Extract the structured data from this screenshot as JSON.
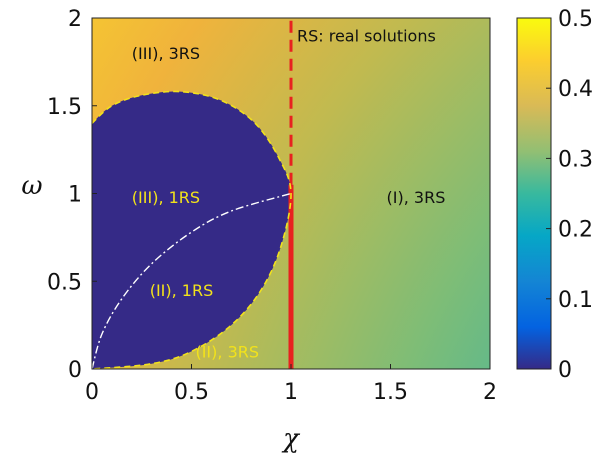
{
  "chart_data": {
    "type": "heatmap",
    "title": "",
    "xlabel": "χ",
    "ylabel": "ω",
    "xlim": [
      0,
      2
    ],
    "ylim": [
      0,
      2
    ],
    "x_ticks": [
      "0",
      "0.5",
      "1",
      "1.5",
      "2"
    ],
    "y_ticks": [
      "0",
      "0.5",
      "1",
      "1.5",
      "2"
    ],
    "colorbar": {
      "range": [
        0,
        0.5
      ],
      "ticks": [
        "0",
        "0.1",
        "0.2",
        "0.3",
        "0.4",
        "0.5"
      ],
      "colormap": "parula"
    },
    "annotations": [
      {
        "text": "RS: real solutions",
        "x": 1.03,
        "y": 1.9,
        "color": "#111111"
      },
      {
        "text": "(III), 3RS",
        "x": 0.2,
        "y": 1.8,
        "color": "#111111"
      },
      {
        "text": "(III), 1RS",
        "x": 0.2,
        "y": 0.98,
        "color": "#f2e21b"
      },
      {
        "text": "(II), 1RS",
        "x": 0.29,
        "y": 0.45,
        "color": "#f2e21b"
      },
      {
        "text": "(II), 3RS",
        "x": 0.52,
        "y": 0.1,
        "color": "#f2e21b"
      },
      {
        "text": "(I), 3RS",
        "x": 1.48,
        "y": 0.98,
        "color": "#111111"
      }
    ],
    "boundaries": [
      {
        "name": "1RS region boundary",
        "style": "yellow dashed",
        "points": [
          [
            0,
            1.4
          ],
          [
            0.1,
            1.5
          ],
          [
            0.25,
            1.56
          ],
          [
            0.45,
            1.58
          ],
          [
            0.65,
            1.53
          ],
          [
            0.82,
            1.4
          ],
          [
            0.94,
            1.2
          ],
          [
            1.0,
            1.0
          ],
          [
            0.95,
            0.7
          ],
          [
            0.85,
            0.45
          ],
          [
            0.7,
            0.25
          ],
          [
            0.5,
            0.1
          ],
          [
            0.3,
            0.03
          ],
          [
            0,
            0
          ]
        ]
      },
      {
        "name": "inner boundary",
        "style": "white dash-dot",
        "points": [
          [
            0,
            0
          ],
          [
            0.05,
            0.2
          ],
          [
            0.15,
            0.4
          ],
          [
            0.3,
            0.6
          ],
          [
            0.5,
            0.78
          ],
          [
            0.7,
            0.9
          ],
          [
            1.0,
            1.0
          ]
        ]
      },
      {
        "name": "dashed vertical",
        "style": "red dashed",
        "points": [
          [
            1,
            1.05
          ],
          [
            1,
            2
          ]
        ]
      },
      {
        "name": "solid vertical",
        "style": "red solid",
        "points": [
          [
            1,
            0
          ],
          [
            1,
            1.05
          ]
        ]
      }
    ],
    "colors": {
      "inside_region": "#352a87",
      "critical_line": "#e8211f",
      "boundary_yellow": "#f2e21b",
      "boundary_white": "#ffffff"
    }
  }
}
